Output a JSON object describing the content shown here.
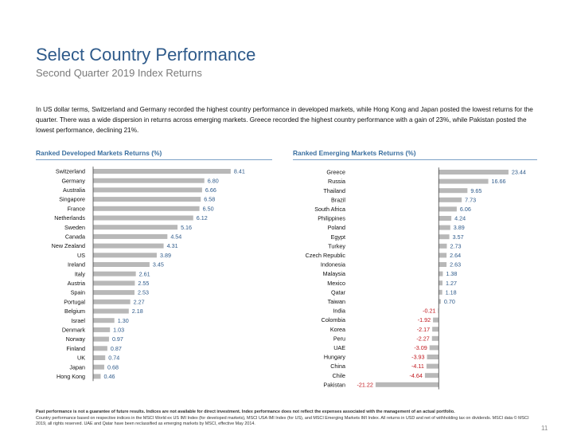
{
  "title": "Select Country Performance",
  "subtitle": "Second Quarter 2019 Index Returns",
  "intro": "In US dollar terms, Switzerland and Germany recorded the highest country performance in developed markets, while Hong Kong and Japan posted the lowest returns for the quarter. There was a wide dispersion in returns across emerging markets. Greece recorded the highest country performance with a gain of 23%, while Pakistan posted the lowest performance, declining 21%.",
  "footnote_bold": "Past performance is not a guarantee of future results. Indices are not available for direct investment. Index performance does not reflect the expenses associated with the management of an actual portfolio.",
  "footnote": "Country performance based on respective indices in the MSCI World ex US IMI Index (for developed markets), MSCI USA IMI Index (for US), and MSCI Emerging Markets IMI Index. All returns in USD and net of withholding tax on dividends. MSCI data © MSCI 2019, all rights reserved. UAE and Qatar have been reclassified as emerging markets by MSCI, effective May 2014.",
  "page_number": "11",
  "colors": {
    "bar": "#b8b8b8",
    "positive_label": "#2e5a8a",
    "negative_label": "#c0161c",
    "title": "#2e5a8a"
  },
  "chart_data": [
    {
      "type": "bar",
      "orientation": "horizontal",
      "title": "Ranked Developed Markets Returns (%)",
      "categories": [
        "Switzerland",
        "Germany",
        "Australia",
        "Singapore",
        "France",
        "Netherlands",
        "Sweden",
        "Canada",
        "New Zealand",
        "US",
        "Ireland",
        "Italy",
        "Austria",
        "Spain",
        "Portugal",
        "Belgium",
        "Israel",
        "Denmark",
        "Norway",
        "Finland",
        "UK",
        "Japan",
        "Hong Kong"
      ],
      "values": [
        8.41,
        6.8,
        6.66,
        6.58,
        6.5,
        6.12,
        5.16,
        4.54,
        4.31,
        3.89,
        3.45,
        2.61,
        2.55,
        2.53,
        2.27,
        2.18,
        1.3,
        1.03,
        0.97,
        0.87,
        0.74,
        0.68,
        0.46
      ],
      "labels": [
        "8.41",
        "6.80",
        "6.66",
        "6.58",
        "6.50",
        "6.12",
        "5.16",
        "4.54",
        "4.31",
        "3.89",
        "3.45",
        "2.61",
        "2.55",
        "2.53",
        "2.27",
        "2.18",
        "1.30",
        "1.03",
        "0.97",
        "0.87",
        "0.74",
        "0.68",
        "0.46"
      ],
      "xlim": [
        0,
        9
      ]
    },
    {
      "type": "bar",
      "orientation": "horizontal",
      "title": "Ranked Emerging Markets Returns (%)",
      "categories": [
        "Greece",
        "Russia",
        "Thailand",
        "Brazil",
        "South Africa",
        "Philippines",
        "Poland",
        "Egypt",
        "Turkey",
        "Czech Republic",
        "Indonesia",
        "Malaysia",
        "Mexico",
        "Qatar",
        "Taiwan",
        "India",
        "Colombia",
        "Korea",
        "Peru",
        "UAE",
        "Hungary",
        "China",
        "Chile",
        "Pakistan"
      ],
      "values": [
        23.44,
        16.66,
        9.65,
        7.73,
        6.06,
        4.24,
        3.89,
        3.57,
        2.73,
        2.64,
        2.63,
        1.38,
        1.27,
        1.18,
        0.7,
        -0.21,
        -1.92,
        -2.17,
        -2.27,
        -3.09,
        -3.93,
        -4.11,
        -4.64,
        -21.22
      ],
      "labels": [
        "23.44",
        "16.66",
        "9.65",
        "7.73",
        "6.06",
        "4.24",
        "3.89",
        "3.57",
        "2.73",
        "2.64",
        "2.63",
        "1.38",
        "1.27",
        "1.18",
        "0.70",
        "-0.21",
        "-1.92",
        "-2.17",
        "-2.27",
        "-3.09",
        "-3.93",
        "-4.11",
        "-4.64",
        "-21.22"
      ],
      "xlim": [
        -22,
        24
      ]
    }
  ]
}
